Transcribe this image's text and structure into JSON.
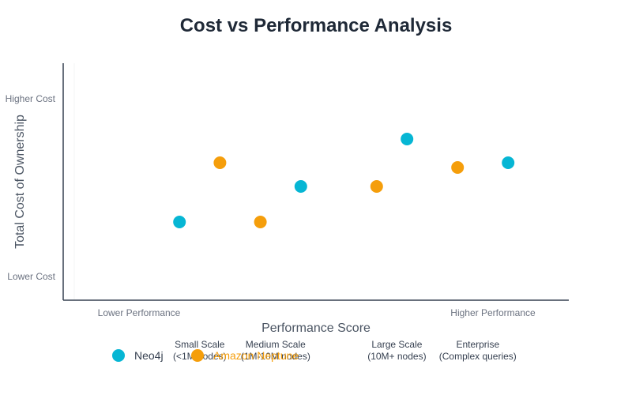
{
  "chart_data": {
    "type": "scatter",
    "title": "Cost vs Performance Analysis",
    "xlabel": "Performance Score",
    "ylabel": "Total Cost of Ownership",
    "xlim": [
      0,
      10
    ],
    "ylim": [
      0,
      10
    ],
    "grid": false,
    "legend_position": "bottom",
    "x_tick_labels": [
      {
        "x": 1.5,
        "text": "Lower Performance"
      },
      {
        "x": 8.5,
        "text": "Higher Performance"
      }
    ],
    "y_tick_labels": [
      {
        "y": 1,
        "text": "Lower Cost"
      },
      {
        "y": 8.5,
        "text": "Higher Cost"
      }
    ],
    "series": [
      {
        "name": "Neo4j",
        "color": "#06b6d4",
        "points": [
          {
            "x": 2.3,
            "y": 3.3
          },
          {
            "x": 4.7,
            "y": 4.8
          },
          {
            "x": 6.8,
            "y": 6.8
          },
          {
            "x": 8.8,
            "y": 5.8
          }
        ]
      },
      {
        "name": "Amazon Neptune",
        "color": "#f59e0b",
        "points": [
          {
            "x": 3.1,
            "y": 5.8
          },
          {
            "x": 3.9,
            "y": 3.3
          },
          {
            "x": 6.2,
            "y": 4.8
          },
          {
            "x": 7.8,
            "y": 5.6
          }
        ]
      }
    ],
    "annotations": [
      {
        "x": 2.7,
        "line1": "Small Scale",
        "line2": "(<1M nodes)"
      },
      {
        "x": 4.2,
        "line1": "Medium Scale",
        "line2": "(1M-10M nodes)"
      },
      {
        "x": 6.6,
        "line1": "Large Scale",
        "line2": "(10M+ nodes)"
      },
      {
        "x": 8.2,
        "line1": "Enterprise",
        "line2": "(Complex queries)"
      }
    ]
  }
}
